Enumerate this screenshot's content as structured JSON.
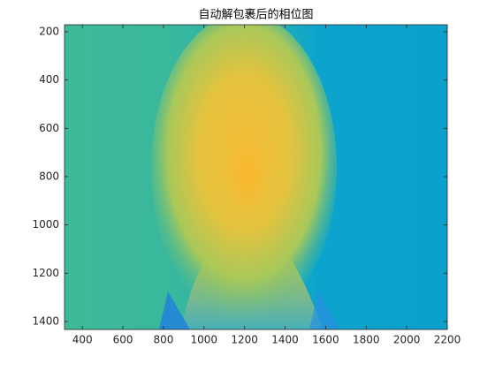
{
  "chart_data": {
    "type": "image",
    "title": "自动解包裹后的相位图",
    "xlim": [
      312,
      2200
    ],
    "ylim": [
      171,
      1433
    ],
    "ydir": "reverse",
    "xticks": [
      400,
      600,
      800,
      1000,
      1200,
      1400,
      1600,
      1800,
      2000,
      2200
    ],
    "yticks": [
      200,
      400,
      600,
      800,
      1000,
      1200,
      1400
    ]
  }
}
